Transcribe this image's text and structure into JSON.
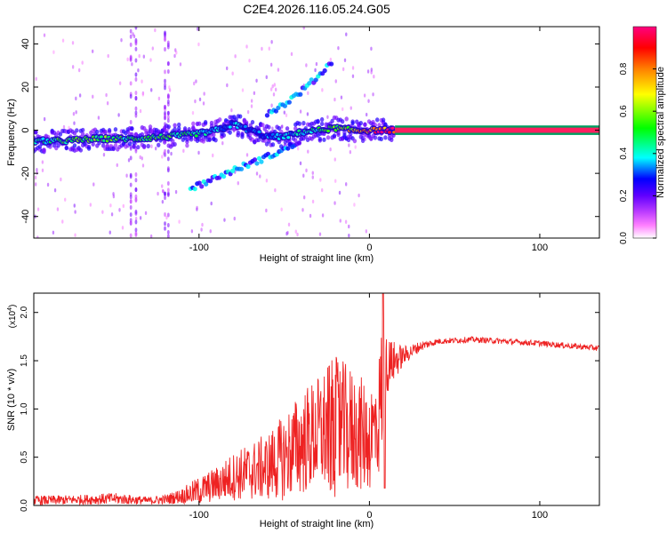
{
  "figure_title": "C2E4.2026.116.05.24.G05",
  "chart_data": [
    {
      "type": "heatmap",
      "title": "",
      "xlabel": "Height of straight line (km)",
      "ylabel": "Frequency (Hz)",
      "xlim": [
        -197,
        135
      ],
      "ylim": [
        -50,
        48
      ],
      "xticks": [
        -100,
        0,
        100
      ],
      "yticks": [
        -40,
        -20,
        0,
        20,
        40
      ],
      "colorbar": {
        "label": "Normalized spectral amplitude",
        "range": [
          0.0,
          1.0
        ],
        "ticks": [
          0.0,
          0.2,
          0.4,
          0.6,
          0.8
        ],
        "colormap": [
          "#ffffff",
          "#ff00ff",
          "#8000ff",
          "#0000ff",
          "#00ffff",
          "#00ff00",
          "#ffff00",
          "#ff8000",
          "#ff0000",
          "#ff0080"
        ]
      },
      "main_trace": {
        "name": "dominant frequency",
        "x": [
          -197,
          -180,
          -160,
          -140,
          -120,
          -105,
          -95,
          -85,
          -80,
          -70,
          -60,
          -50,
          -40,
          -30,
          -20,
          -10,
          0,
          10,
          20,
          60,
          100,
          135
        ],
        "y": [
          -5,
          -5,
          -4,
          -4,
          -3,
          -2,
          -1,
          1,
          3,
          0,
          -3,
          -3,
          -1,
          0,
          1,
          0,
          0,
          0,
          0,
          0,
          0,
          0
        ],
        "amplitude": [
          0.4,
          0.5,
          0.55,
          0.45,
          0.5,
          0.45,
          0.4,
          0.35,
          0.35,
          0.3,
          0.3,
          0.35,
          0.4,
          0.45,
          0.55,
          0.7,
          0.85,
          0.9,
          0.9,
          0.9,
          0.9,
          0.9
        ]
      },
      "secondary_traces": [
        {
          "name": "upper branch",
          "x": [
            -60,
            -50,
            -40,
            -30,
            -22
          ],
          "y": [
            8,
            12,
            18,
            25,
            32
          ]
        },
        {
          "name": "lower branch",
          "x": [
            -105,
            -90,
            -75,
            -62,
            -50,
            -40
          ],
          "y": [
            -27,
            -22,
            -17,
            -13,
            -9,
            -5
          ]
        }
      ]
    },
    {
      "type": "line",
      "title": "",
      "xlabel": "Height of straight line (km)",
      "ylabel": "SNR (10 * v/v)",
      "y_multiplier_label": "(x10",
      "y_multiplier_exponent": "4",
      "y_multiplier_suffix": ")",
      "xlim": [
        -197,
        135
      ],
      "ylim": [
        0,
        2.2
      ],
      "xticks": [
        -100,
        0,
        100
      ],
      "yticks": [
        0.0,
        0.5,
        1.0,
        1.5,
        2.0
      ],
      "series": [
        {
          "name": "SNR",
          "color": "#ee2222",
          "envelope_x": [
            -197,
            -170,
            -150,
            -130,
            -120,
            -110,
            -100,
            -90,
            -80,
            -70,
            -60,
            -50,
            -40,
            -30,
            -20,
            -10,
            0,
            5,
            8,
            10,
            20,
            30,
            40,
            60,
            80,
            100,
            120,
            135
          ],
          "envelope_y": [
            0.05,
            0.06,
            0.07,
            0.05,
            0.06,
            0.1,
            0.15,
            0.22,
            0.3,
            0.35,
            0.4,
            0.5,
            0.65,
            0.75,
            0.8,
            0.78,
            0.7,
            0.85,
            1.3,
            1.45,
            1.55,
            1.65,
            1.7,
            1.72,
            1.7,
            1.68,
            1.65,
            1.63
          ],
          "noise_amplitude": [
            0.05,
            0.05,
            0.06,
            0.04,
            0.05,
            0.08,
            0.15,
            0.18,
            0.25,
            0.3,
            0.35,
            0.45,
            0.55,
            0.6,
            0.75,
            0.65,
            0.55,
            0.6,
            0.8,
            0.3,
            0.1,
            0.05,
            0.03,
            0.03,
            0.03,
            0.03,
            0.03,
            0.03
          ]
        }
      ]
    }
  ]
}
